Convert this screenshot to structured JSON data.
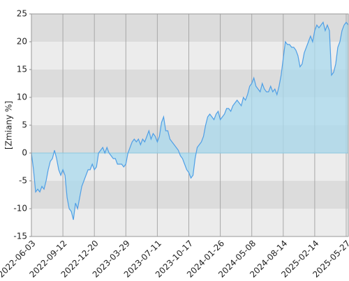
{
  "chart_data": {
    "type": "area",
    "ylabel": "[Zmiany %]",
    "categories": [
      "2022-06-03",
      null,
      null,
      null,
      null,
      null,
      null,
      null,
      null,
      null,
      null,
      null,
      null,
      null,
      null,
      "2022-09-12",
      null,
      null,
      null,
      null,
      null,
      null,
      null,
      null,
      null,
      null,
      null,
      null,
      null,
      null,
      "2022-12-20",
      null,
      null,
      null,
      null,
      null,
      null,
      null,
      null,
      null,
      null,
      null,
      null,
      null,
      null,
      "2023-03-29",
      null,
      null,
      null,
      null,
      null,
      null,
      null,
      null,
      null,
      null,
      null,
      null,
      null,
      null,
      "2023-07-11",
      null,
      null,
      null,
      null,
      null,
      null,
      null,
      null,
      null,
      null,
      null,
      null,
      null,
      null,
      "2023-10-17",
      null,
      null,
      null,
      null,
      null,
      null,
      null,
      null,
      null,
      null,
      null,
      null,
      null,
      null,
      "2024-01-26",
      null,
      null,
      null,
      null,
      null,
      null,
      null,
      null,
      null,
      null,
      null,
      null,
      null,
      null,
      "2024-05-08",
      null,
      null,
      null,
      null,
      null,
      null,
      null,
      null,
      null,
      null,
      null,
      null,
      null,
      null,
      "2024-08-14",
      null,
      null,
      null,
      null,
      null,
      null,
      null,
      null,
      null,
      null,
      null,
      null,
      null,
      null,
      "2025-02-14",
      null,
      null,
      null,
      null,
      null,
      null,
      null,
      null,
      null,
      null,
      null,
      null,
      null,
      null,
      "2025-05-27",
      null
    ],
    "values": [
      0,
      -3,
      -7,
      -6.5,
      -7,
      -6,
      -6.5,
      -5,
      -3,
      -1.5,
      -1,
      0.5,
      -1,
      -3,
      -4,
      -3,
      -4,
      -8,
      -10,
      -10.5,
      -12,
      -9,
      -10,
      -8,
      -6,
      -5,
      -4,
      -3,
      -3,
      -2,
      -3,
      -2.5,
      0,
      0.5,
      1,
      0,
      1,
      0,
      -0.5,
      -1,
      -1,
      -2,
      -2,
      -2,
      -2.5,
      -2,
      0,
      1,
      2,
      2.5,
      2,
      2.5,
      1.5,
      2.5,
      2,
      3,
      4,
      2.5,
      3.5,
      3,
      2,
      3,
      5.5,
      6.5,
      4,
      4,
      2.5,
      2,
      1.5,
      1,
      0.5,
      -0.5,
      -1,
      -2,
      -3,
      -3.5,
      -4.5,
      -4,
      -1,
      1,
      1.5,
      2,
      3,
      5,
      6.5,
      7,
      6.5,
      6,
      7,
      7.5,
      6,
      6.5,
      7,
      8,
      8,
      7.5,
      8.5,
      9,
      9.5,
      9,
      8.5,
      10,
      9.5,
      10.5,
      12,
      12.5,
      13.5,
      12,
      11.5,
      11,
      12.5,
      11.5,
      11,
      11,
      12,
      11,
      11.5,
      10.5,
      12,
      14,
      17,
      20,
      19.5,
      19.5,
      19,
      19,
      18.5,
      17.5,
      15.5,
      16,
      18,
      19,
      20,
      21,
      20,
      22,
      23,
      22.5,
      23,
      23.5,
      22,
      23,
      22,
      14,
      14.5,
      16,
      19,
      20,
      22,
      23,
      23.5,
      23
    ],
    "ylim": [
      -15,
      25
    ],
    "yticks": [
      -15,
      -10,
      -5,
      0,
      5,
      10,
      15,
      20,
      25
    ],
    "color": "#4f9fe6",
    "fill": "#a9d9ee",
    "grid": true
  }
}
